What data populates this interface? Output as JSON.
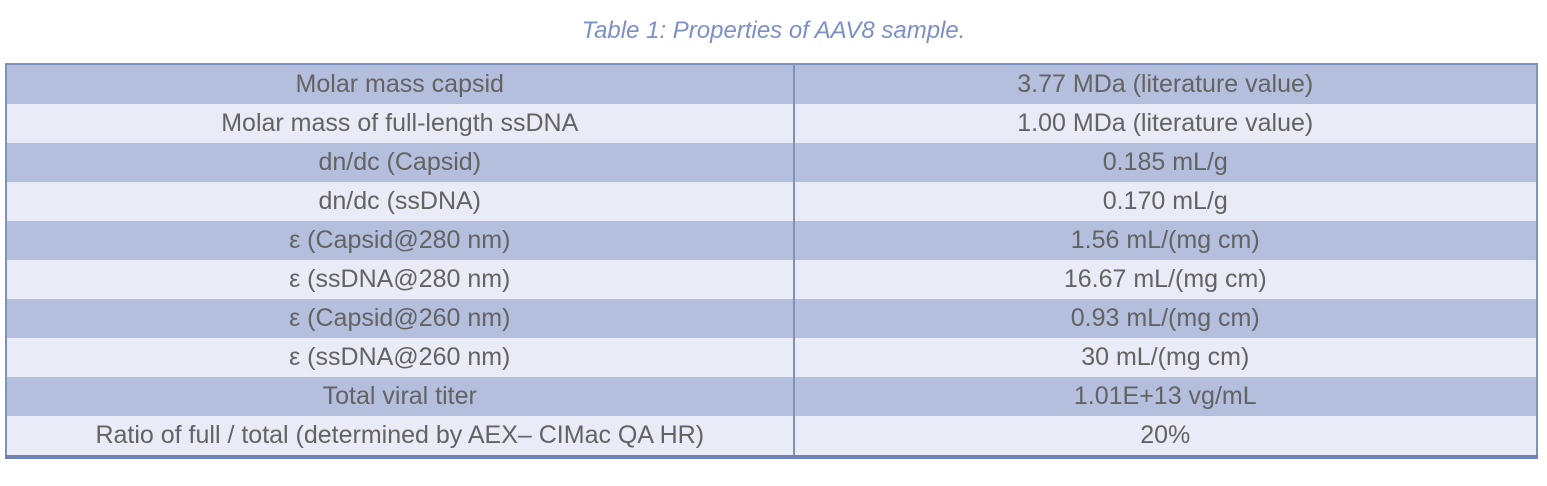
{
  "caption": "Table 1: Properties of AAV8 sample.",
  "colors": {
    "row_dark": "#b4bedd",
    "row_light": "#e9ecf7",
    "border": "#8091c0",
    "border_bottom": "#7182b5",
    "text": "#636363",
    "caption_text": "#7c90c6"
  },
  "table": {
    "rows": [
      {
        "property": "Molar mass capsid",
        "value": "3.77 MDa (literature value)"
      },
      {
        "property": "Molar mass of full-length ssDNA",
        "value": "1.00 MDa (literature value)"
      },
      {
        "property": "dn/dc (Capsid)",
        "value": "0.185 mL/g"
      },
      {
        "property": "dn/dc (ssDNA)",
        "value": "0.170 mL/g"
      },
      {
        "property": "ε (Capsid@280 nm)",
        "value": "1.56 mL/(mg cm)"
      },
      {
        "property": "ε (ssDNA@280 nm)",
        "value": "16.67 mL/(mg cm)"
      },
      {
        "property": "ε (Capsid@260 nm)",
        "value": "0.93 mL/(mg cm)"
      },
      {
        "property": "ε (ssDNA@260 nm)",
        "value": "30 mL/(mg cm)"
      },
      {
        "property": "Total viral titer",
        "value": "1.01E+13 vg/mL"
      },
      {
        "property": "Ratio of full / total (determined by AEX– CIMac QA HR)",
        "value": "20%"
      }
    ]
  }
}
